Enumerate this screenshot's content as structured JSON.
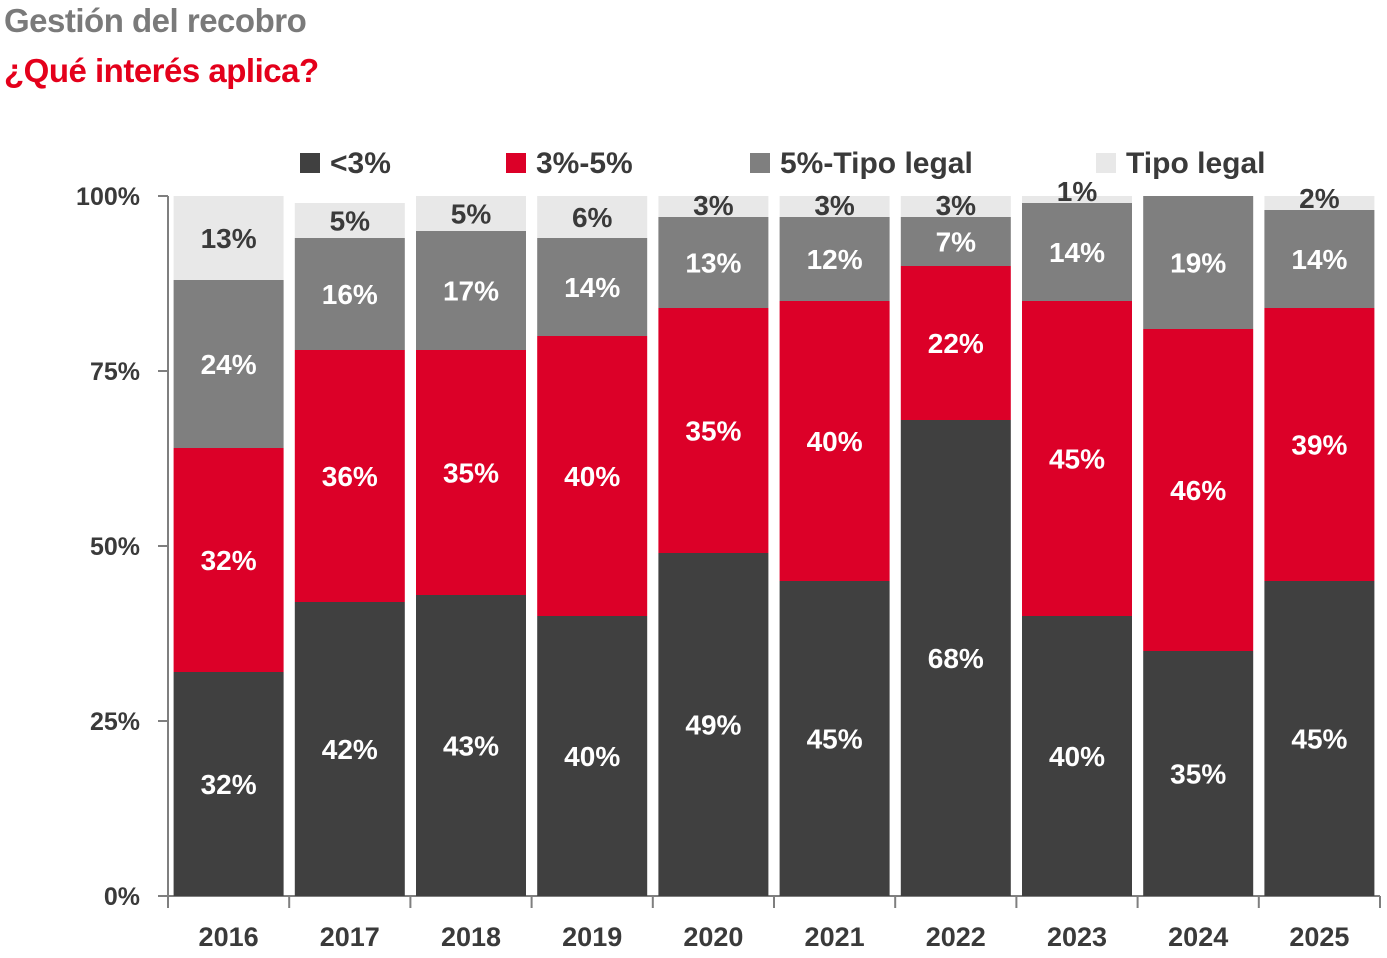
{
  "header": {
    "title": "Gestión del recobro",
    "subtitle": "¿Qué interés aplica?"
  },
  "colors": {
    "dark": "#404040",
    "red": "#dc0028",
    "gray": "#7f7f7f",
    "light": "#e8e8e8"
  },
  "chart_data": {
    "type": "bar",
    "stacked": true,
    "categories": [
      "2016",
      "2017",
      "2018",
      "2019",
      "2020",
      "2021",
      "2022",
      "2023",
      "2024",
      "2025"
    ],
    "ylim": [
      0,
      100
    ],
    "yticks": [
      "0%",
      "25%",
      "50%",
      "75%",
      "100%"
    ],
    "legend_position": "top",
    "grid": false,
    "series": [
      {
        "name": "<3%",
        "color": "#404040",
        "label_color": "#ffffff",
        "values": [
          32,
          42,
          43,
          40,
          49,
          45,
          68,
          40,
          35,
          45
        ]
      },
      {
        "name": "3%-5%",
        "color": "#dc0028",
        "label_color": "#ffffff",
        "values": [
          32,
          36,
          35,
          40,
          35,
          40,
          22,
          45,
          46,
          39
        ]
      },
      {
        "name": "5%-Tipo legal",
        "color": "#7f7f7f",
        "label_color": "#ffffff",
        "values": [
          24,
          16,
          17,
          14,
          13,
          12,
          7,
          14,
          19,
          14
        ]
      },
      {
        "name": "Tipo legal",
        "color": "#e8e8e8",
        "label_color": "#3a3a3a",
        "values": [
          13,
          5,
          5,
          6,
          3,
          3,
          3,
          1,
          null,
          2
        ]
      }
    ]
  }
}
